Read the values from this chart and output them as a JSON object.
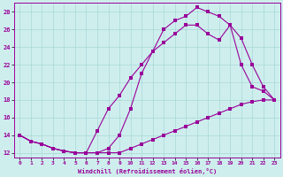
{
  "xlabel": "Windchill (Refroidissement éolien,°C)",
  "bg_color": "#ceeeed",
  "line_color": "#990099",
  "grid_color": "#a8d8d8",
  "xlim": [
    -0.5,
    23.5
  ],
  "ylim": [
    11.5,
    29
  ],
  "yticks": [
    12,
    14,
    16,
    18,
    20,
    22,
    24,
    26,
    28
  ],
  "xticks": [
    0,
    1,
    2,
    3,
    4,
    5,
    6,
    7,
    8,
    9,
    10,
    11,
    12,
    13,
    14,
    15,
    16,
    17,
    18,
    19,
    20,
    21,
    22,
    23
  ],
  "curve1_x": [
    0,
    1,
    2,
    3,
    4,
    5,
    6,
    7,
    8,
    9,
    10,
    11,
    12,
    13,
    14,
    15,
    16,
    17,
    18,
    19,
    20,
    21,
    22,
    23
  ],
  "curve1_y": [
    14.0,
    13.3,
    13.0,
    12.5,
    12.2,
    12.0,
    12.0,
    12.0,
    12.0,
    12.0,
    12.5,
    13.0,
    13.5,
    14.0,
    14.5,
    15.0,
    15.5,
    16.0,
    16.5,
    17.0,
    17.5,
    17.8,
    18.0,
    18.0
  ],
  "curve2_x": [
    0,
    1,
    2,
    3,
    4,
    5,
    6,
    7,
    8,
    9,
    10,
    11,
    12,
    13,
    14,
    15,
    16,
    17,
    18,
    19,
    20,
    21,
    22,
    23
  ],
  "curve2_y": [
    14.0,
    13.3,
    13.0,
    12.5,
    12.2,
    12.0,
    12.0,
    12.0,
    12.5,
    14.0,
    17.0,
    21.0,
    23.5,
    26.0,
    27.0,
    27.5,
    28.5,
    28.0,
    27.5,
    26.5,
    25.0,
    22.0,
    19.5,
    18.0
  ],
  "curve3_x": [
    0,
    1,
    2,
    3,
    4,
    5,
    6,
    7,
    8,
    9,
    10,
    11,
    12,
    13,
    14,
    15,
    16,
    17,
    18,
    19,
    20,
    21,
    22,
    23
  ],
  "curve3_y": [
    14.0,
    13.3,
    13.0,
    12.5,
    12.2,
    12.0,
    12.0,
    14.5,
    17.0,
    18.5,
    20.5,
    22.0,
    23.5,
    24.5,
    25.5,
    26.5,
    26.5,
    25.5,
    24.8,
    26.5,
    22.0,
    19.5,
    19.0,
    18.0
  ]
}
